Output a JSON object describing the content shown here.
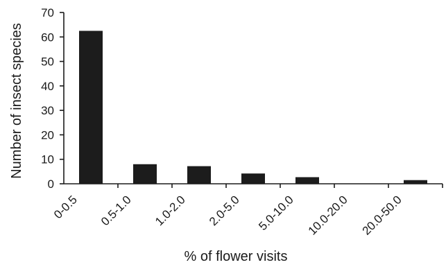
{
  "chart_data": {
    "type": "bar",
    "title": "",
    "xlabel": "% of flower visits",
    "ylabel": "Number of insect species",
    "categories": [
      "0-0.5",
      "0.5-1.0",
      "1.0-2.0",
      "2.0-5.0",
      "5.0-10.0",
      "10.0-20.0",
      "20.0-50.0"
    ],
    "values": [
      62.5,
      8,
      7.2,
      4.2,
      2.7,
      0,
      1.5
    ],
    "ylim": [
      0,
      70
    ],
    "yticks": [
      0,
      10,
      20,
      30,
      40,
      50,
      60,
      70
    ],
    "grid": false,
    "legend": "none",
    "bar_color": "#1c1c1c"
  }
}
